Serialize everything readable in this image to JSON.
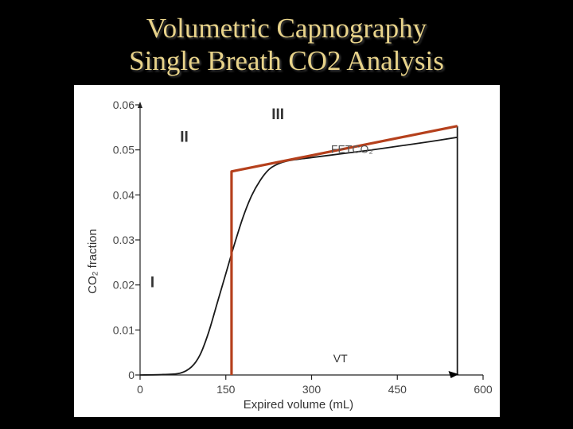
{
  "slide": {
    "title_line_1": "Volumetric Capnography",
    "title_line_2": "Single Breath CO2 Analysis",
    "background_color": "#000000",
    "title_color": "#e8d38a"
  },
  "chart_data": {
    "type": "line",
    "xlabel": "Expired volume (mL)",
    "ylabel": "CO₂ fraction",
    "xlim": [
      0,
      600
    ],
    "ylim": [
      0,
      0.06
    ],
    "x_ticks": [
      0,
      150,
      300,
      450,
      600
    ],
    "y_ticks": [
      0,
      0.01,
      0.02,
      0.03,
      0.04,
      0.05,
      0.06
    ],
    "x_tick_labels": [
      "0",
      "150",
      "300",
      "450",
      "600"
    ],
    "y_tick_labels": [
      "0",
      "0.01",
      "0.02",
      "0.03",
      "0.04",
      "0.05",
      "0.06"
    ],
    "grid": false,
    "series": [
      {
        "color": "#1a1a1a",
        "points": [
          [
            0,
            0
          ],
          [
            40,
            0.0001
          ],
          [
            70,
            0.0004
          ],
          [
            90,
            0.0018
          ],
          [
            105,
            0.0045
          ],
          [
            120,
            0.0095
          ],
          [
            135,
            0.016
          ],
          [
            150,
            0.0225
          ],
          [
            165,
            0.029
          ],
          [
            180,
            0.035
          ],
          [
            195,
            0.0398
          ],
          [
            210,
            0.0432
          ],
          [
            225,
            0.0456
          ],
          [
            240,
            0.0468
          ],
          [
            260,
            0.0476
          ],
          [
            300,
            0.0483
          ],
          [
            350,
            0.0491
          ],
          [
            400,
            0.0499
          ],
          [
            450,
            0.0508
          ],
          [
            500,
            0.0517
          ],
          [
            555,
            0.0528
          ]
        ]
      },
      {
        "color": "#b5401c",
        "points": [
          [
            160,
            0
          ],
          [
            160,
            0.0452
          ],
          [
            555,
            0.0553
          ]
        ]
      }
    ],
    "vertical_lines": [
      {
        "x": 555,
        "from": 0,
        "to": 0.0553,
        "color": "#1a1a1a"
      }
    ],
    "markers": [
      {
        "x": 552,
        "y": 0,
        "shape": "triangle",
        "color": "#000000"
      }
    ],
    "annotations": [
      {
        "text": "I",
        "x": 18,
        "y": 0.0195
      },
      {
        "text": "II",
        "x": 70,
        "y": 0.0518
      },
      {
        "text": "III",
        "x": 230,
        "y": 0.0568
      },
      {
        "text": "FETCO₂",
        "x": 334,
        "y": 0.0493
      },
      {
        "text": "VT",
        "x": 338,
        "y": 0.0028
      }
    ]
  }
}
